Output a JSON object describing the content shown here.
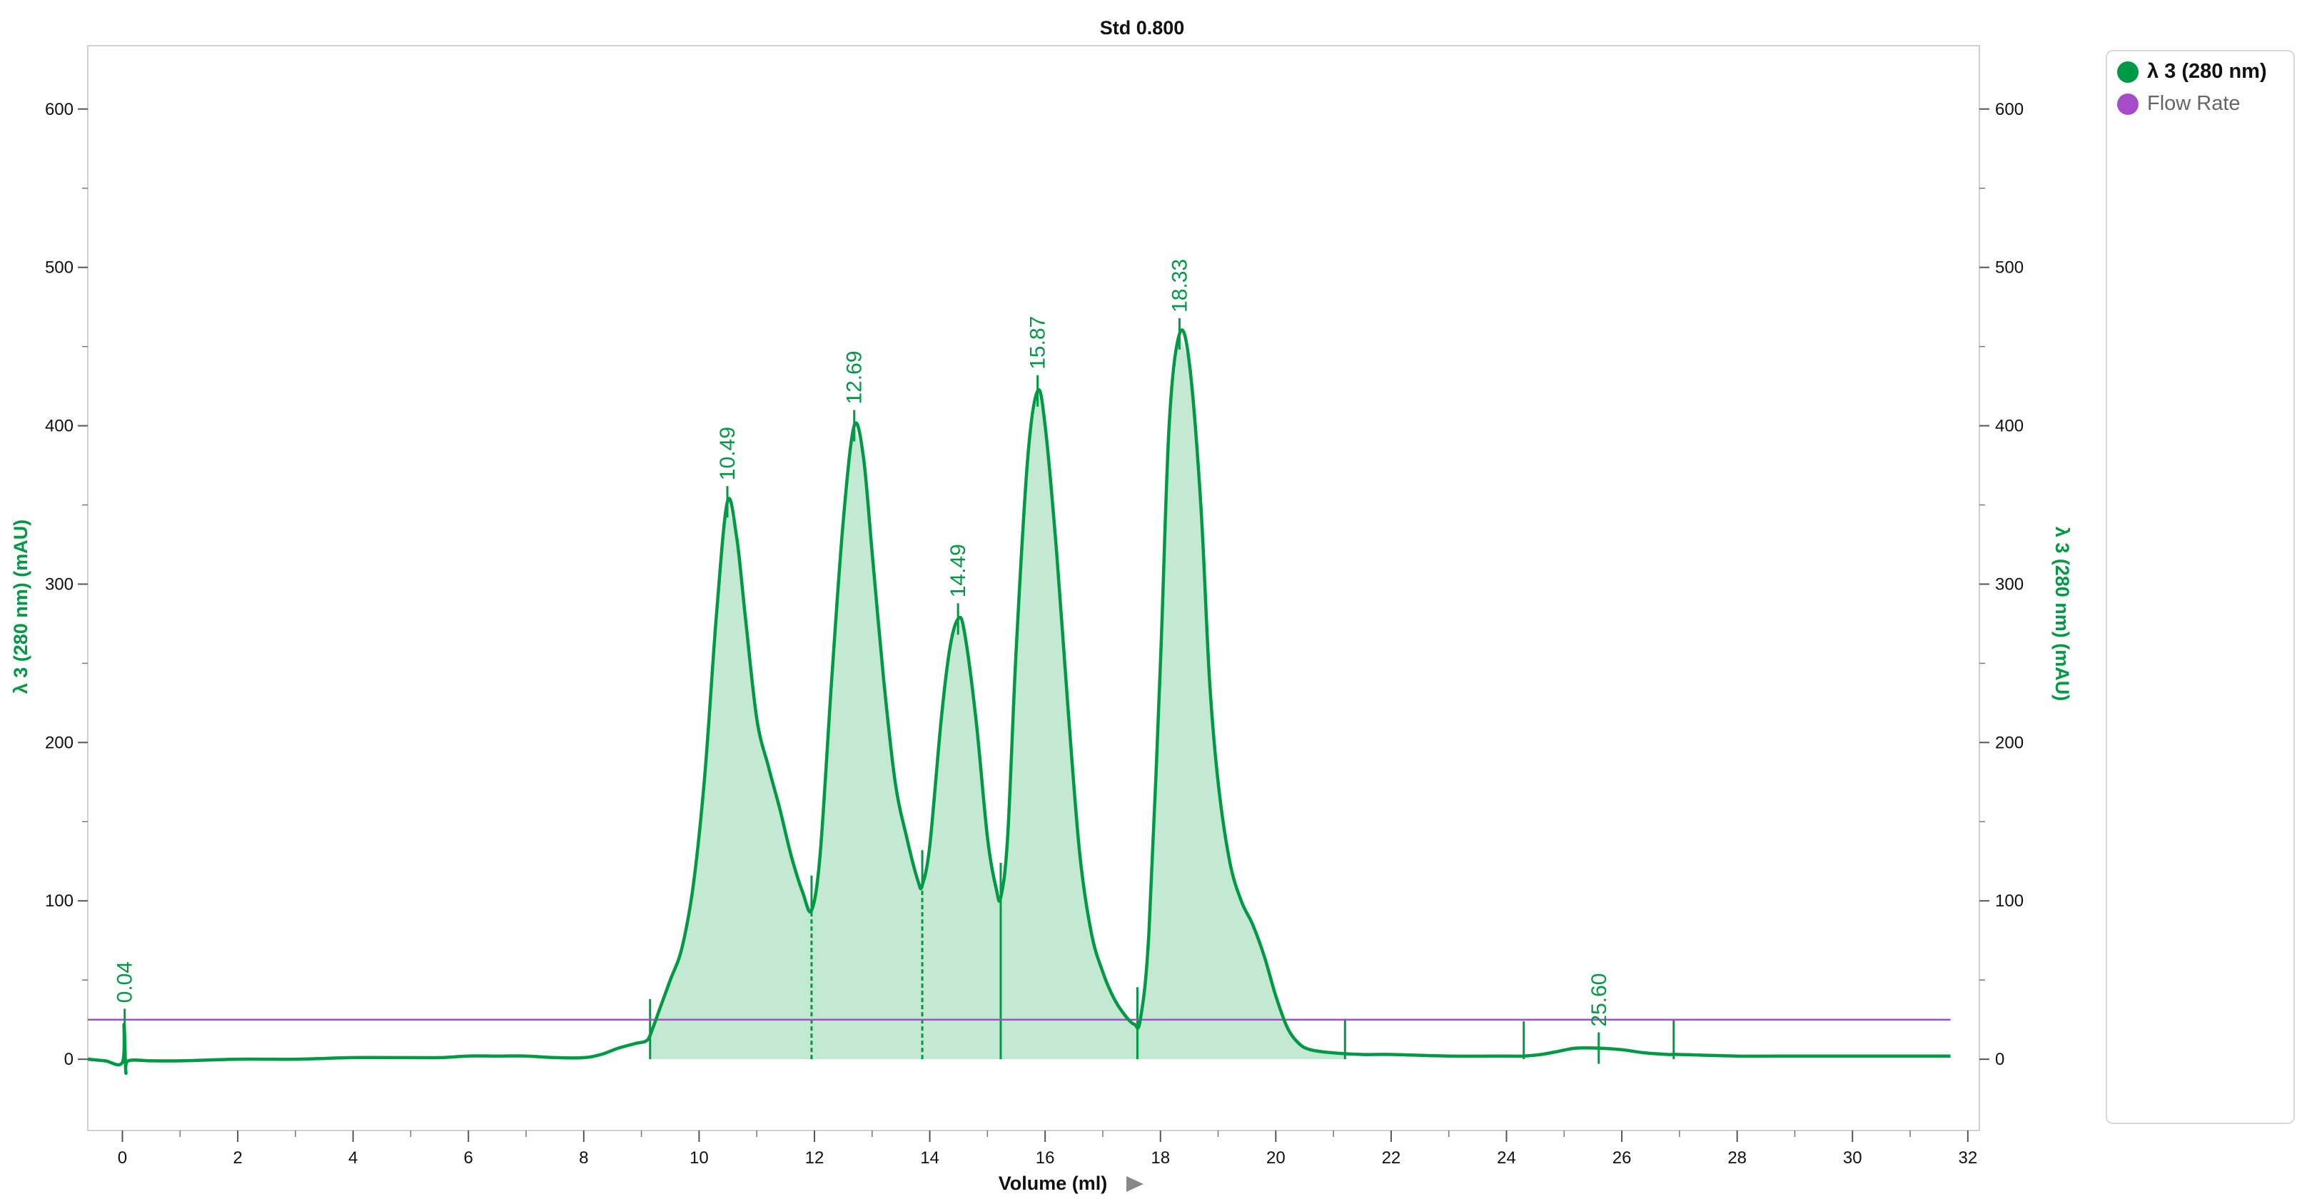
{
  "chart_data": {
    "type": "line",
    "title": "Std 0.800",
    "xlabel": "Volume (ml)",
    "ylabel": "λ 3 (280 nm) (mAU)",
    "ylabel_right": "λ 3 (280 nm) (mAU)",
    "xlim": [
      -0.6,
      32.2
    ],
    "ylim": [
      -45,
      640
    ],
    "x_ticks": [
      0,
      2,
      4,
      6,
      8,
      10,
      12,
      14,
      16,
      18,
      20,
      22,
      24,
      26,
      28,
      30,
      32
    ],
    "y_ticks": [
      0,
      100,
      200,
      300,
      400,
      500,
      600
    ],
    "x_tick_labels": [
      "0",
      "2",
      "4",
      "6",
      "8",
      "10",
      "12",
      "14",
      "16",
      "18",
      "20",
      "22",
      "24",
      "26",
      "28",
      "30",
      "32"
    ],
    "y_tick_labels": [
      "0",
      "100",
      "200",
      "300",
      "400",
      "500",
      "600"
    ],
    "grid": false,
    "legend_position": "right",
    "series": [
      {
        "name": "λ 3 (280 nm)",
        "color": "#009a44",
        "fill": "#c3e9d2",
        "x": [
          -0.6,
          -0.3,
          0,
          0.03,
          0.06,
          0.1,
          0.5,
          1,
          2,
          3,
          4,
          5,
          5.5,
          6,
          6.5,
          7,
          7.5,
          8,
          8.3,
          8.6,
          8.9,
          9.1,
          9.2,
          9.3,
          9.5,
          9.7,
          9.9,
          10.1,
          10.3,
          10.49,
          10.65,
          10.8,
          11,
          11.2,
          11.4,
          11.6,
          11.8,
          11.95,
          12.1,
          12.3,
          12.5,
          12.69,
          12.85,
          13,
          13.2,
          13.4,
          13.6,
          13.8,
          13.87,
          14,
          14.2,
          14.35,
          14.49,
          14.6,
          14.8,
          15,
          15.15,
          15.23,
          15.35,
          15.5,
          15.7,
          15.87,
          16,
          16.2,
          16.4,
          16.6,
          16.8,
          17,
          17.2,
          17.4,
          17.55,
          17.65,
          17.8,
          18,
          18.15,
          18.33,
          18.5,
          18.7,
          18.85,
          19,
          19.2,
          19.4,
          19.6,
          19.8,
          20,
          20.2,
          20.4,
          20.6,
          21,
          21.5,
          22,
          23,
          24,
          24.3,
          24.6,
          24.9,
          25.2,
          25.6,
          26,
          26.4,
          26.8,
          27,
          28,
          29,
          30,
          31,
          31.7
        ],
        "values": [
          0,
          -1,
          -2,
          22,
          -8,
          -1,
          -1,
          -1,
          0,
          0,
          1,
          1,
          1,
          2,
          2,
          2,
          1,
          1,
          3,
          7,
          10,
          12,
          20,
          30,
          50,
          70,
          110,
          180,
          280,
          352,
          330,
          280,
          215,
          185,
          158,
          128,
          105,
          94,
          130,
          240,
          340,
          400,
          380,
          320,
          240,
          175,
          140,
          112,
          110,
          135,
          215,
          260,
          278,
          270,
          215,
          140,
          108,
          102,
          140,
          260,
          380,
          422,
          400,
          320,
          220,
          130,
          80,
          55,
          38,
          27,
          22,
          25,
          80,
          250,
          400,
          458,
          440,
          350,
          240,
          175,
          125,
          100,
          85,
          65,
          40,
          20,
          10,
          6,
          4,
          3,
          3,
          2,
          2,
          2,
          3,
          5,
          7,
          7,
          6,
          4,
          3,
          3,
          2,
          2,
          2,
          2,
          2
        ]
      },
      {
        "name": "Flow Rate",
        "color": "#a64cc8",
        "x": [
          -0.6,
          31.7
        ],
        "values": [
          25,
          25
        ]
      }
    ],
    "peak_labels": [
      {
        "x": 0.04,
        "y": 22,
        "label": "0.04"
      },
      {
        "x": 10.49,
        "y": 352,
        "label": "10.49"
      },
      {
        "x": 12.69,
        "y": 400,
        "label": "12.69"
      },
      {
        "x": 14.49,
        "y": 278,
        "label": "14.49"
      },
      {
        "x": 15.87,
        "y": 422,
        "label": "15.87"
      },
      {
        "x": 18.33,
        "y": 458,
        "label": "18.33"
      },
      {
        "x": 25.6,
        "y": 7,
        "label": "25.60"
      }
    ],
    "peak_boundaries": [
      9.15,
      11.95,
      13.87,
      15.23,
      17.6,
      21.2,
      24.3,
      26.9
    ],
    "fill_range": [
      9.15,
      21.2
    ]
  },
  "legend": {
    "items": [
      {
        "label": "λ 3 (280 nm)",
        "color": "#009a44",
        "active": true
      },
      {
        "label": "Flow Rate",
        "color": "#a64cc8",
        "active": false
      }
    ]
  }
}
